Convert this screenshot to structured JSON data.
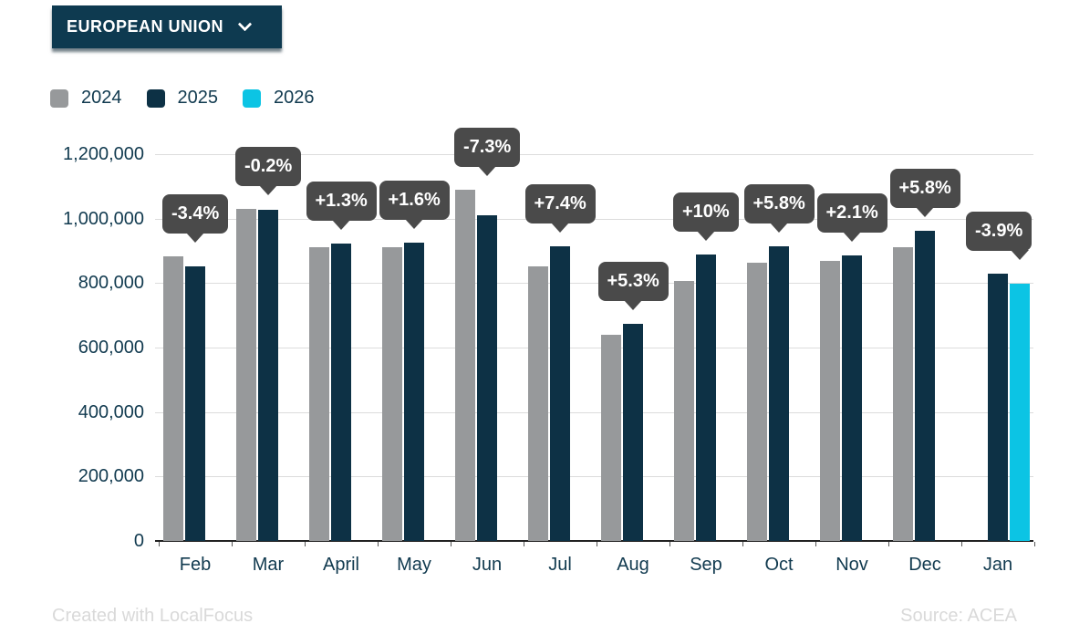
{
  "dropdown": {
    "label": "EUROPEAN UNION"
  },
  "legend": [
    {
      "label": "2024",
      "color": "#97999b"
    },
    {
      "label": "2025",
      "color": "#0d3145"
    },
    {
      "label": "2026",
      "color": "#0cc4e4"
    }
  ],
  "chart_data": {
    "type": "bar",
    "title": "",
    "categories": [
      "Feb",
      "Mar",
      "April",
      "May",
      "Jun",
      "Jul",
      "Aug",
      "Sep",
      "Oct",
      "Nov",
      "Dec",
      "Jan"
    ],
    "series": [
      {
        "name": "2024",
        "color": "#97999b",
        "values": [
          883000,
          1030000,
          910000,
          911000,
          1089000,
          852000,
          640000,
          807000,
          864000,
          869000,
          910000,
          null
        ]
      },
      {
        "name": "2025",
        "color": "#0d3145",
        "values": [
          853000,
          1028000,
          922000,
          926000,
          1010000,
          915000,
          674000,
          888000,
          914000,
          887000,
          963000,
          829000
        ]
      },
      {
        "name": "2026",
        "color": "#0cc4e4",
        "values": [
          null,
          null,
          null,
          null,
          null,
          null,
          null,
          null,
          null,
          null,
          null,
          797000
        ]
      }
    ],
    "change_labels": [
      "-3.4%",
      "-0.2%",
      "+1.3%",
      "+1.6%",
      "-7.3%",
      "+7.4%",
      "+5.3%",
      "+10%",
      "+5.8%",
      "+2.1%",
      "+5.8%",
      "-3.9%"
    ],
    "y_ticks": [
      "1,200,000",
      "1,000,000",
      "800,000",
      "600,000",
      "400,000",
      "200,000",
      "0"
    ],
    "ylim": [
      0,
      1200000
    ],
    "grid": true,
    "legend_position": "top-left",
    "tooltip_bg": "#4a4a4a",
    "gridline_color": "#dcdcdc"
  },
  "footer": {
    "left": "Created with LocalFocus",
    "right": "Source: ACEA"
  }
}
